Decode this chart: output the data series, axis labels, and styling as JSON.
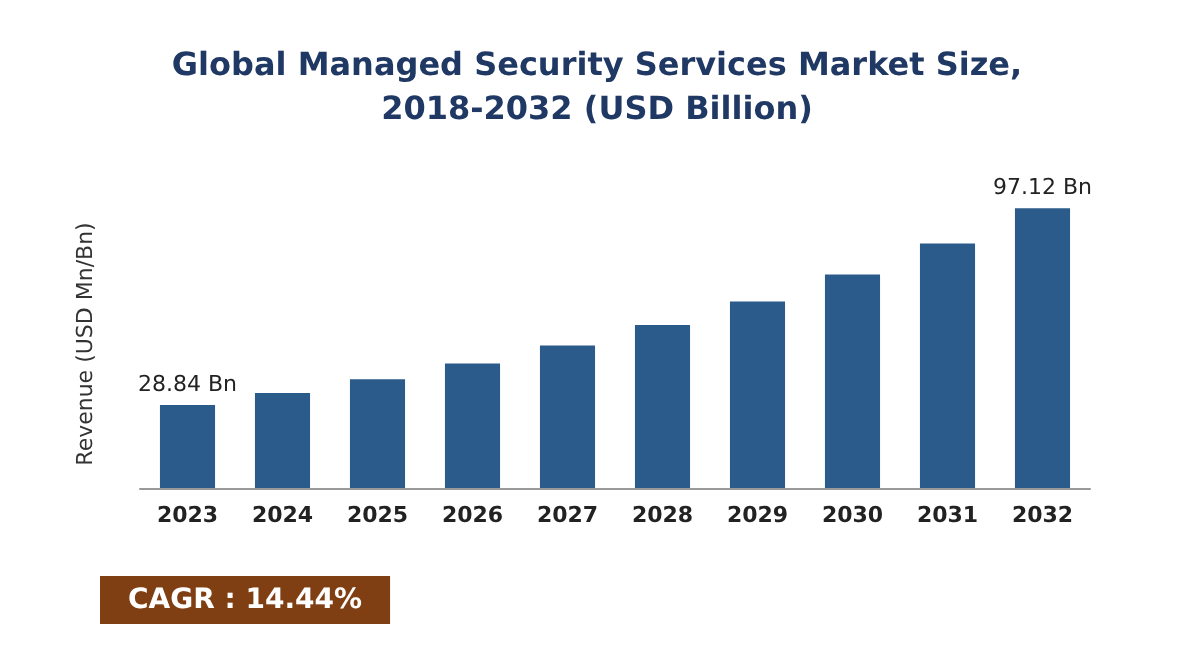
{
  "chart_data": {
    "type": "bar",
    "title": "Global Managed Security Services Market Size,\n2018-2032 (USD Billion)",
    "ylabel": "Revenue (USD Mn/Bn)",
    "categories": [
      "2023",
      "2024",
      "2025",
      "2026",
      "2027",
      "2028",
      "2029",
      "2030",
      "2031",
      "2032"
    ],
    "values": [
      28.84,
      33.0,
      37.8,
      43.2,
      49.5,
      56.6,
      64.8,
      74.1,
      84.9,
      97.12
    ],
    "value_labels": [
      "28.84 Bn",
      null,
      null,
      null,
      null,
      null,
      null,
      null,
      null,
      "97.12 Bn"
    ],
    "color": "#2b5b8b",
    "tick_labels": "x",
    "grid": false,
    "annotations": [
      "CAGR : 14.44%"
    ]
  }
}
